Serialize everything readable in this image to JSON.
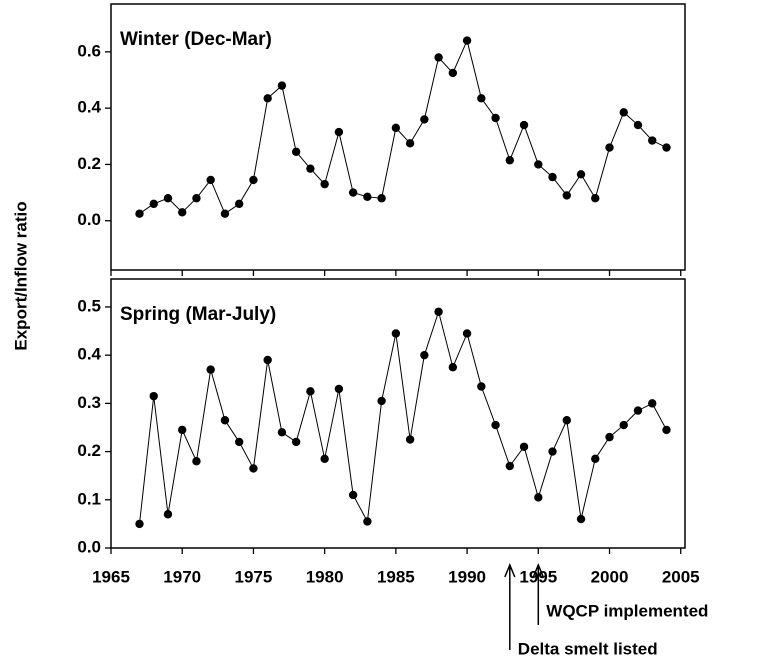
{
  "chart_data": [
    {
      "type": "line",
      "title": "Winter (Dec-Mar)",
      "ylabel": "Export/Inflow ratio",
      "color": "#000000",
      "x": [
        1967,
        1968,
        1969,
        1970,
        1971,
        1972,
        1973,
        1974,
        1975,
        1976,
        1977,
        1978,
        1979,
        1980,
        1981,
        1982,
        1983,
        1984,
        1985,
        1986,
        1987,
        1988,
        1989,
        1990,
        1991,
        1992,
        1993,
        1994,
        1995,
        1996,
        1997,
        1998,
        1999,
        2000,
        2001,
        2002,
        2003,
        2004
      ],
      "values": [
        0.025,
        0.06,
        0.08,
        0.03,
        0.08,
        0.145,
        0.025,
        0.06,
        0.145,
        0.435,
        0.48,
        0.245,
        0.185,
        0.13,
        0.315,
        0.1,
        0.085,
        0.08,
        0.33,
        0.275,
        0.36,
        0.58,
        0.525,
        0.64,
        0.435,
        0.365,
        0.215,
        0.34,
        0.2,
        0.155,
        0.09,
        0.165,
        0.08,
        0.26,
        0.385,
        0.34,
        0.285,
        0.26
      ],
      "ylim": [
        -0.175,
        0.77
      ],
      "yticks": [
        {
          "value": 0,
          "label": "0.0"
        },
        0.2,
        0.4,
        0.6
      ]
    },
    {
      "type": "line",
      "title": "Spring (Mar-July)",
      "color": "#000000",
      "x": [
        1967,
        1968,
        1969,
        1970,
        1971,
        1972,
        1973,
        1974,
        1975,
        1976,
        1977,
        1978,
        1979,
        1980,
        1981,
        1982,
        1983,
        1984,
        1985,
        1986,
        1987,
        1988,
        1989,
        1990,
        1991,
        1992,
        1993,
        1994,
        1995,
        1996,
        1997,
        1998,
        1999,
        2000,
        2001,
        2002,
        2003,
        2004
      ],
      "values": [
        0.05,
        0.315,
        0.07,
        0.245,
        0.18,
        0.37,
        0.265,
        0.22,
        0.165,
        0.39,
        0.24,
        0.22,
        0.325,
        0.185,
        0.33,
        0.11,
        0.055,
        0.305,
        0.445,
        0.225,
        0.4,
        0.49,
        0.375,
        0.445,
        0.335,
        0.255,
        0.17,
        0.21,
        0.105,
        0.2,
        0.265,
        0.06,
        0.185,
        0.23,
        0.255,
        0.285,
        0.3,
        0.245
      ],
      "ylim": [
        0,
        0.558
      ],
      "yticks": [
        {
          "value": 0,
          "label": "0.0"
        },
        0.1,
        0.2,
        0.3,
        0.4,
        0.5
      ],
      "xlim": [
        1965,
        2005.3
      ],
      "xticks": [
        1965,
        1970,
        1975,
        1980,
        1985,
        1990,
        1995,
        2000,
        2005
      ],
      "annotations": [
        {
          "text": "Delta smelt listed",
          "x": 1993
        },
        {
          "text": "WQCP implemented",
          "x": 1995
        }
      ]
    }
  ]
}
